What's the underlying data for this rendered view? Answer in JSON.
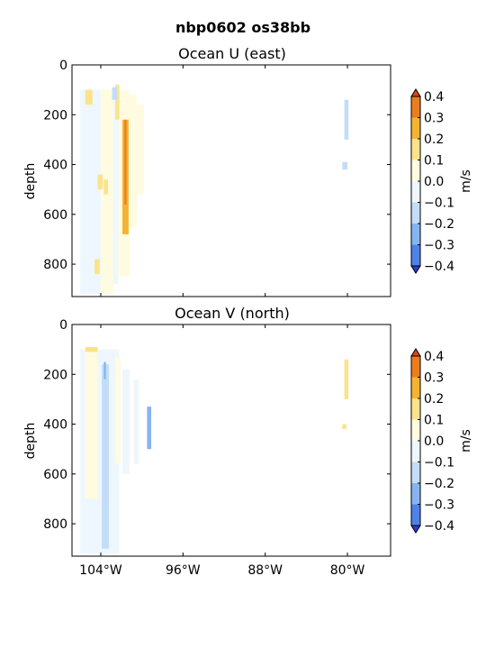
{
  "figure": {
    "title": "nbp0602 os38bb"
  },
  "chart_data": [
    {
      "type": "heatmap",
      "title": "Ocean U (east)",
      "ylabel": "depth",
      "xlabel": "",
      "x_ticks": [
        "104°W",
        "96°W",
        "88°W",
        "80°W"
      ],
      "x_tick_values": [
        -104,
        -96,
        -88,
        -80
      ],
      "xlim": [
        -106.8,
        -75.8
      ],
      "ylim": [
        930,
        0
      ],
      "y_ticks": [
        0,
        200,
        400,
        600,
        800
      ],
      "grid": false,
      "show_x_tick_labels": false,
      "colorbar": {
        "label": "m/s",
        "ticks": [
          "0.4",
          "0.3",
          "0.2",
          "0.1",
          "0.0",
          "−0.1",
          "−0.2",
          "−0.3",
          "−0.4"
        ],
        "levels": [
          -0.4,
          -0.3,
          -0.2,
          -0.1,
          0.0,
          0.1,
          0.2,
          0.3,
          0.4
        ],
        "colors": [
          "#2b3bd9",
          "#4f82e8",
          "#86b4f0",
          "#c3ddf8",
          "#eef7fd",
          "#fffbe0",
          "#fbe38c",
          "#f4b431",
          "#ec7d1e",
          "#d9481a"
        ]
      },
      "regions": [
        {
          "x": [
            -106.0,
            -104.0
          ],
          "depth": [
            100,
            920
          ],
          "value": -0.08
        },
        {
          "x": [
            -104.0,
            -102.8
          ],
          "depth": [
            100,
            920
          ],
          "value": 0.05
        },
        {
          "x": [
            -102.8,
            -102.3
          ],
          "depth": [
            120,
            880
          ],
          "value": -0.05
        },
        {
          "x": [
            -102.3,
            -101.2
          ],
          "depth": [
            100,
            850
          ],
          "value": 0.05
        },
        {
          "x": [
            -101.2,
            -100.5
          ],
          "depth": [
            120,
            650
          ],
          "value": 0.05
        },
        {
          "x": [
            -100.5,
            -99.8
          ],
          "depth": [
            160,
            520
          ],
          "value": 0.04
        },
        {
          "x": [
            -105.5,
            -104.8
          ],
          "depth": [
            100,
            160
          ],
          "value": 0.12
        },
        {
          "x": [
            -104.3,
            -103.8
          ],
          "depth": [
            440,
            500
          ],
          "value": 0.12
        },
        {
          "x": [
            -103.7,
            -103.3
          ],
          "depth": [
            460,
            520
          ],
          "value": 0.12
        },
        {
          "x": [
            -104.6,
            -104.1
          ],
          "depth": [
            780,
            840
          ],
          "value": 0.12
        },
        {
          "x": [
            -102.6,
            -102.2
          ],
          "depth": [
            80,
            220
          ],
          "value": 0.12
        },
        {
          "x": [
            -102.9,
            -102.4
          ],
          "depth": [
            90,
            140
          ],
          "value": -0.15
        },
        {
          "x": [
            -101.9,
            -101.3
          ],
          "depth": [
            220,
            680
          ],
          "value": 0.25
        },
        {
          "x": [
            -101.7,
            -101.5
          ],
          "depth": [
            220,
            560
          ],
          "value": 0.34
        },
        {
          "x": [
            -80.3,
            -79.9
          ],
          "depth": [
            140,
            300
          ],
          "value": -0.12
        },
        {
          "x": [
            -80.5,
            -80.0
          ],
          "depth": [
            390,
            420
          ],
          "value": -0.15
        }
      ]
    },
    {
      "type": "heatmap",
      "title": "Ocean V (north)",
      "ylabel": "depth",
      "xlabel": "",
      "x_ticks": [
        "104°W",
        "96°W",
        "88°W",
        "80°W"
      ],
      "x_tick_values": [
        -104,
        -96,
        -88,
        -80
      ],
      "xlim": [
        -106.8,
        -75.8
      ],
      "ylim": [
        930,
        0
      ],
      "y_ticks": [
        0,
        200,
        400,
        600,
        800
      ],
      "grid": false,
      "show_x_tick_labels": true,
      "colorbar": {
        "label": "m/s",
        "ticks": [
          "0.4",
          "0.3",
          "0.2",
          "0.1",
          "0.0",
          "−0.1",
          "−0.2",
          "−0.3",
          "−0.4"
        ],
        "levels": [
          -0.4,
          -0.3,
          -0.2,
          -0.1,
          0.0,
          0.1,
          0.2,
          0.3,
          0.4
        ],
        "colors": [
          "#2b3bd9",
          "#4f82e8",
          "#86b4f0",
          "#c3ddf8",
          "#eef7fd",
          "#fffbe0",
          "#fbe38c",
          "#f4b431",
          "#ec7d1e",
          "#d9481a"
        ]
      },
      "regions": [
        {
          "x": [
            -106.0,
            -102.2
          ],
          "depth": [
            100,
            920
          ],
          "value": -0.05
        },
        {
          "x": [
            -105.5,
            -104.3
          ],
          "depth": [
            100,
            700
          ],
          "value": 0.04
        },
        {
          "x": [
            -103.9,
            -103.2
          ],
          "depth": [
            160,
            900
          ],
          "value": -0.15
        },
        {
          "x": [
            -103.7,
            -103.5
          ],
          "depth": [
            150,
            220
          ],
          "value": -0.25
        },
        {
          "x": [
            -102.6,
            -102.1
          ],
          "depth": [
            130,
            560
          ],
          "value": 0.04
        },
        {
          "x": [
            -101.9,
            -101.2
          ],
          "depth": [
            180,
            600
          ],
          "value": -0.05
        },
        {
          "x": [
            -100.8,
            -100.3
          ],
          "depth": [
            220,
            560
          ],
          "value": -0.05
        },
        {
          "x": [
            -99.5,
            -99.1
          ],
          "depth": [
            330,
            500
          ],
          "value": -0.25
        },
        {
          "x": [
            -105.5,
            -104.3
          ],
          "depth": [
            90,
            110
          ],
          "value": 0.15
        },
        {
          "x": [
            -80.3,
            -79.9
          ],
          "depth": [
            140,
            300
          ],
          "value": 0.15
        },
        {
          "x": [
            -80.5,
            -80.1
          ],
          "depth": [
            400,
            420
          ],
          "value": 0.15
        }
      ]
    }
  ]
}
